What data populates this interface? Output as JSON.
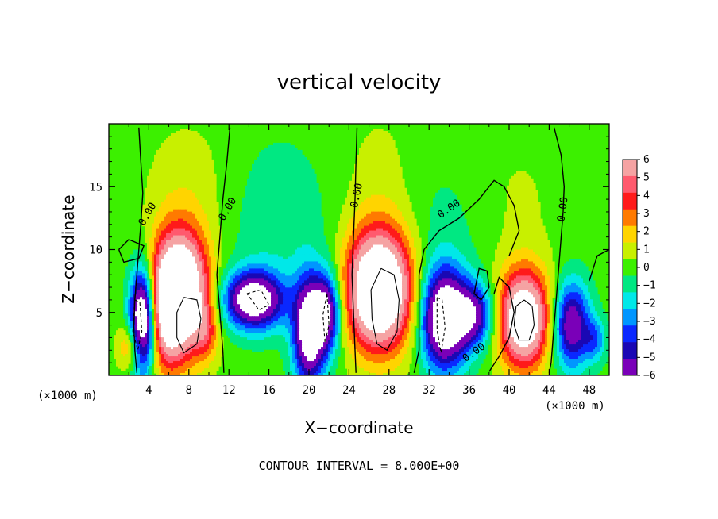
{
  "chart_data": {
    "type": "heatmap",
    "title": "vertical velocity",
    "xlabel": "X−coordinate",
    "ylabel": "Z−coordinate",
    "x_unit_left": "(×1000 m)",
    "x_unit_right": "(×1000 m)",
    "xlim": [
      0,
      50
    ],
    "ylim": [
      0,
      20
    ],
    "xticks": [
      "4",
      "8",
      "12",
      "16",
      "20",
      "24",
      "28",
      "32",
      "36",
      "40",
      "44",
      "48"
    ],
    "xtick_values": [
      4,
      8,
      12,
      16,
      20,
      24,
      28,
      32,
      36,
      40,
      44,
      48
    ],
    "yticks": [
      "5",
      "10",
      "15"
    ],
    "ytick_values": [
      5,
      10,
      15
    ],
    "colorbar": {
      "labels": [
        "6",
        "5",
        "4",
        "3",
        "2",
        "1",
        "0",
        "−1",
        "−2",
        "−3",
        "−4",
        "−5",
        "−6"
      ],
      "values": [
        6,
        5,
        4,
        3,
        2,
        1,
        0,
        -1,
        -2,
        -3,
        -4,
        -5,
        -6
      ],
      "colors": [
        "#f5a3a3",
        "#ff5a6e",
        "#ff1a1a",
        "#ff7a00",
        "#ffd400",
        "#c8f000",
        "#3cf000",
        "#00e882",
        "#00e8e8",
        "#0096ff",
        "#0a28ff",
        "#1a08b4",
        "#7a00b8"
      ]
    },
    "contour_interval_text": "CONTOUR INTERVAL = 8.000E+00",
    "contour_label": "0.00",
    "cells": [
      {
        "x": 2.2,
        "z": 2.3,
        "sx": 0.9,
        "sz": 1.3,
        "a": 3.5
      },
      {
        "x": 3.4,
        "z": 4.4,
        "sx": 0.9,
        "sz": 2.8,
        "a": -11
      },
      {
        "x": 5.6,
        "z": 4.8,
        "sx": 1.1,
        "sz": 3.2,
        "a": 4
      },
      {
        "x": 7.2,
        "z": 6.5,
        "sx": 1.9,
        "sz": 3.4,
        "a": 12
      },
      {
        "x": 9.8,
        "z": 3.5,
        "sx": 0.8,
        "sz": 1.6,
        "a": 2.5
      },
      {
        "x": 14.5,
        "z": 6.0,
        "sx": 2.1,
        "sz": 1.6,
        "a": -9
      },
      {
        "x": 20.0,
        "z": 3.5,
        "sx": 1.1,
        "sz": 3.0,
        "a": -9
      },
      {
        "x": 21.8,
        "z": 5.0,
        "sx": 1.0,
        "sz": 2.2,
        "a": -7
      },
      {
        "x": 27.0,
        "z": 6.8,
        "sx": 2.3,
        "sz": 3.3,
        "a": 12
      },
      {
        "x": 33.5,
        "z": 4.5,
        "sx": 1.6,
        "sz": 2.8,
        "a": -10
      },
      {
        "x": 36.5,
        "z": 4.8,
        "sx": 1.4,
        "sz": 1.8,
        "a": -6
      },
      {
        "x": 41.5,
        "z": 4.5,
        "sx": 1.8,
        "sz": 2.7,
        "a": 10
      },
      {
        "x": 46.2,
        "z": 4.0,
        "sx": 1.3,
        "sz": 2.4,
        "a": -7
      },
      {
        "x": 48.6,
        "z": 2.8,
        "sx": 0.8,
        "sz": 1.2,
        "a": -3
      },
      {
        "x": 8.0,
        "z": 15.0,
        "sx": 3.2,
        "sz": 4.0,
        "a": 1.0
      },
      {
        "x": 27.0,
        "z": 15.5,
        "sx": 3.0,
        "sz": 4.5,
        "a": 0.8
      },
      {
        "x": 41.0,
        "z": 14.0,
        "sx": 3.0,
        "sz": 4.0,
        "a": 0.6
      },
      {
        "x": 17.0,
        "z": 12.0,
        "sx": 4.0,
        "sz": 5.0,
        "a": -1.2
      },
      {
        "x": 33.0,
        "z": 12.0,
        "sx": 3.0,
        "sz": 4.0,
        "a": -0.8
      }
    ],
    "contours": [
      {
        "type": "zero",
        "points": [
          [
            3,
            19.7
          ],
          [
            3.2,
            17
          ],
          [
            3.4,
            14.5
          ],
          [
            3.2,
            12
          ],
          [
            3,
            10
          ],
          [
            2.8,
            8
          ],
          [
            2.6,
            6
          ],
          [
            2.5,
            4
          ],
          [
            2.6,
            2
          ],
          [
            2.8,
            0.2
          ]
        ]
      },
      {
        "type": "zero",
        "points": [
          [
            12.1,
            19.7
          ],
          [
            11.8,
            17
          ],
          [
            11.4,
            14
          ],
          [
            11.2,
            12
          ],
          [
            11.0,
            10
          ],
          [
            10.8,
            8
          ],
          [
            11.0,
            6
          ],
          [
            11.2,
            4
          ],
          [
            11.4,
            2
          ],
          [
            11.5,
            0.2
          ]
        ]
      },
      {
        "type": "zero",
        "points": [
          [
            24.8,
            19.7
          ],
          [
            24.7,
            17
          ],
          [
            24.6,
            14
          ],
          [
            24.5,
            12
          ],
          [
            24.4,
            10
          ],
          [
            24.3,
            8
          ],
          [
            24.4,
            6
          ],
          [
            24.5,
            4
          ],
          [
            24.6,
            2
          ],
          [
            24.7,
            0.2
          ]
        ]
      },
      {
        "type": "zero",
        "points": [
          [
            44.5,
            19.7
          ],
          [
            45.2,
            17.5
          ],
          [
            45.5,
            15
          ],
          [
            45.4,
            13
          ],
          [
            45.2,
            11
          ],
          [
            45.0,
            9
          ],
          [
            44.8,
            7
          ],
          [
            44.6,
            5
          ],
          [
            44.4,
            3
          ],
          [
            44.2,
            1
          ],
          [
            44.0,
            0.2
          ]
        ]
      },
      {
        "type": "zero",
        "points": [
          [
            30.5,
            0.2
          ],
          [
            31.0,
            2
          ],
          [
            31.0,
            5
          ],
          [
            31.0,
            8
          ],
          [
            31.5,
            10
          ],
          [
            33,
            11.5
          ],
          [
            35,
            12.5
          ],
          [
            37,
            14
          ],
          [
            38.5,
            15.5
          ],
          [
            39.5,
            15.0
          ],
          [
            40.5,
            13.5
          ],
          [
            41.0,
            11.5
          ],
          [
            40.0,
            9.5
          ]
        ]
      },
      {
        "type": "zero",
        "points": [
          [
            38.0,
            0.3
          ],
          [
            39.0,
            1.5
          ],
          [
            40.0,
            3.0
          ],
          [
            40.5,
            5.0
          ],
          [
            40.0,
            7.0
          ],
          [
            39.0,
            7.8
          ],
          [
            38.5,
            6.5
          ]
        ]
      },
      {
        "type": "zero",
        "points": [
          [
            1,
            10
          ],
          [
            2,
            10.8
          ],
          [
            3.5,
            10.3
          ],
          [
            3,
            9.3
          ],
          [
            1.5,
            9.0
          ],
          [
            1,
            10
          ]
        ]
      },
      {
        "type": "zero",
        "points": [
          [
            36.5,
            6.5
          ],
          [
            37.0,
            8.5
          ],
          [
            37.8,
            8.3
          ],
          [
            38.0,
            7.0
          ],
          [
            37.2,
            6.0
          ],
          [
            36.5,
            6.5
          ]
        ]
      },
      {
        "type": "zero",
        "points": [
          [
            48.0,
            7.5
          ],
          [
            48.8,
            9.5
          ],
          [
            50.0,
            10.0
          ]
        ]
      },
      {
        "type": "pos",
        "points": [
          [
            7.5,
            6.2
          ],
          [
            8.8,
            6.0
          ],
          [
            9.2,
            4.5
          ],
          [
            8.8,
            2.5
          ],
          [
            7.5,
            1.8
          ],
          [
            6.8,
            3.0
          ],
          [
            6.8,
            5.0
          ],
          [
            7.5,
            6.2
          ]
        ]
      },
      {
        "type": "pos",
        "points": [
          [
            27.2,
            8.5
          ],
          [
            28.5,
            8.0
          ],
          [
            29.0,
            6.0
          ],
          [
            28.8,
            3.5
          ],
          [
            27.8,
            2.0
          ],
          [
            26.8,
            2.5
          ],
          [
            26.3,
            4.5
          ],
          [
            26.2,
            6.8
          ],
          [
            27.2,
            8.5
          ]
        ]
      },
      {
        "type": "pos",
        "points": [
          [
            41.5,
            6.0
          ],
          [
            42.3,
            5.5
          ],
          [
            42.5,
            4.0
          ],
          [
            42.0,
            2.8
          ],
          [
            41.0,
            2.8
          ],
          [
            40.5,
            4.0
          ],
          [
            40.7,
            5.5
          ],
          [
            41.5,
            6.0
          ]
        ]
      },
      {
        "type": "neg",
        "points": [
          [
            2.6,
            6.0
          ],
          [
            3.1,
            5.8
          ],
          [
            3.3,
            3.5
          ],
          [
            2.9,
            2.0
          ],
          [
            2.4,
            3.5
          ],
          [
            2.6,
            6.0
          ]
        ]
      },
      {
        "type": "neg",
        "points": [
          [
            13.8,
            6.5
          ],
          [
            15.2,
            6.8
          ],
          [
            16.0,
            5.6
          ],
          [
            15.0,
            5.2
          ],
          [
            13.8,
            6.5
          ]
        ]
      },
      {
        "type": "neg",
        "points": [
          [
            21.8,
            6.5
          ],
          [
            22.0,
            4.0
          ],
          [
            21.6,
            2.6
          ],
          [
            21.4,
            4.8
          ],
          [
            21.8,
            6.5
          ]
        ]
      },
      {
        "type": "neg",
        "points": [
          [
            32.8,
            6.2
          ],
          [
            33.3,
            6.0
          ],
          [
            33.6,
            3.8
          ],
          [
            33.2,
            1.8
          ],
          [
            32.8,
            3.6
          ],
          [
            32.8,
            6.2
          ]
        ]
      }
    ],
    "contour_labels": [
      {
        "x": 3.9,
        "z": 12.8,
        "angle": -60
      },
      {
        "x": 11.9,
        "z": 13.2,
        "angle": -60
      },
      {
        "x": 24.8,
        "z": 14.3,
        "angle": -78
      },
      {
        "x": 34.0,
        "z": 13.2,
        "angle": -35
      },
      {
        "x": 45.4,
        "z": 13.2,
        "angle": -82
      },
      {
        "x": 36.5,
        "z": 1.8,
        "angle": -35
      }
    ]
  }
}
